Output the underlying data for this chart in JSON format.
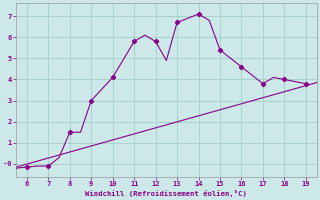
{
  "xlabel": "Windchill (Refroidissement éolien,°C)",
  "background_color": "#cce8e8",
  "grid_color": "#aad0d0",
  "line_color": "#880088",
  "xlim": [
    5.5,
    19.5
  ],
  "ylim": [
    -0.6,
    7.6
  ],
  "xticks": [
    6,
    7,
    8,
    9,
    10,
    11,
    12,
    13,
    14,
    15,
    16,
    17,
    18,
    19
  ],
  "yticks": [
    0,
    1,
    2,
    3,
    4,
    5,
    6,
    7
  ],
  "ytick_labels": [
    "-0",
    "1",
    "2",
    "3",
    "4",
    "5",
    "6",
    "7"
  ],
  "straight_line_x": [
    5.5,
    19.5
  ],
  "straight_line_y": [
    -0.15,
    3.85
  ],
  "curve_x": [
    5.5,
    6,
    6.5,
    7,
    7.5,
    8,
    8.5,
    9,
    10,
    11,
    11.5,
    12,
    12.5,
    13,
    14,
    14.5,
    15,
    16,
    17,
    17.5,
    18,
    19
  ],
  "curve_y": [
    -0.2,
    -0.15,
    -0.1,
    -0.1,
    0.3,
    1.5,
    1.5,
    3.0,
    4.1,
    5.8,
    6.1,
    5.8,
    4.9,
    6.7,
    7.1,
    6.8,
    5.4,
    4.6,
    3.8,
    4.1,
    4.0,
    3.8
  ],
  "marker_x": [
    6,
    7,
    8,
    9,
    10,
    11,
    12,
    13,
    14,
    15,
    16,
    17,
    18,
    19
  ],
  "marker_y": [
    -0.15,
    -0.1,
    1.5,
    3.0,
    4.1,
    5.8,
    5.8,
    6.7,
    7.1,
    5.4,
    4.6,
    3.8,
    4.0,
    3.8
  ]
}
